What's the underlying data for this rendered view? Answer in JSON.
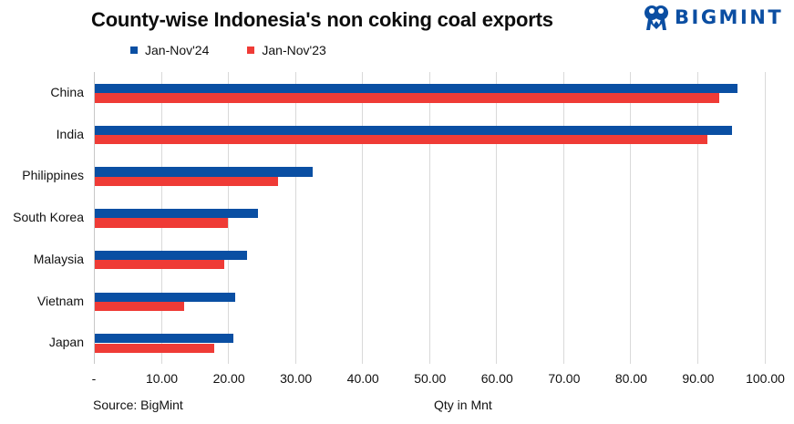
{
  "header": {
    "title": "County-wise Indonesia's non coking coal exports",
    "logo_text": "BIGMINT",
    "logo_icon": "bigmint-people-icon",
    "logo_color": "#0b4ea2"
  },
  "legend": [
    {
      "label": "Jan-Nov'24",
      "color": "#0a4fa3"
    },
    {
      "label": "Jan-Nov'23",
      "color": "#ef3b36"
    }
  ],
  "axis": {
    "ticks": [
      "-",
      "10.00",
      "20.00",
      "30.00",
      "40.00",
      "50.00",
      "60.00",
      "70.00",
      "80.00",
      "90.00",
      "100.00"
    ],
    "xlabel": "Qty in Mnt"
  },
  "footer": {
    "source": "Source: BigMint"
  },
  "chart_data": {
    "type": "bar",
    "orientation": "horizontal",
    "title": "County-wise Indonesia's non coking coal exports",
    "categories": [
      "China",
      "India",
      "Philippines",
      "South Korea",
      "Malaysia",
      "Vietnam",
      "Japan"
    ],
    "series": [
      {
        "name": "Jan-Nov'24",
        "color": "#0a4fa3",
        "values": [
          95.9,
          95.1,
          32.5,
          24.3,
          22.7,
          20.9,
          20.7
        ]
      },
      {
        "name": "Jan-Nov'23",
        "color": "#ef3b36",
        "values": [
          93.2,
          91.3,
          27.3,
          19.8,
          19.3,
          13.3,
          17.8
        ]
      }
    ],
    "xlabel": "Qty in Mnt",
    "ylabel": "",
    "xlim": [
      0,
      100
    ],
    "xticks": [
      0,
      10,
      20,
      30,
      40,
      50,
      60,
      70,
      80,
      90,
      100
    ],
    "grid": "vertical",
    "legend_position": "top",
    "source": "Source: BigMint"
  }
}
